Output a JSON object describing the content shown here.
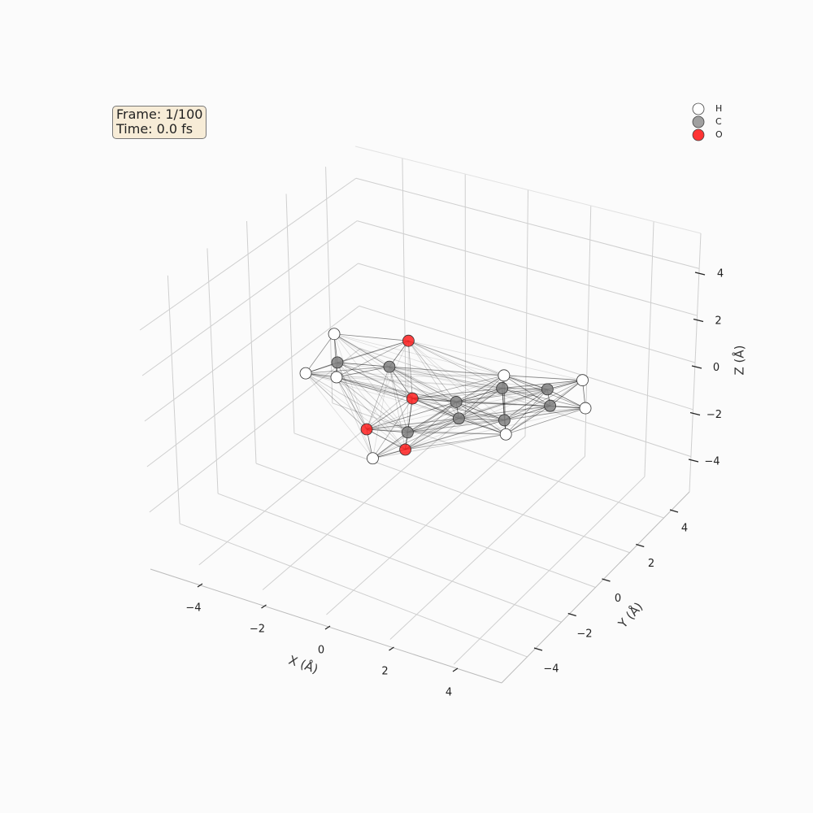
{
  "info_box": {
    "frame": "Frame: 1/100",
    "time": "Time: 0.0 fs"
  },
  "legend": [
    {
      "label": "H",
      "color": "#ffffff"
    },
    {
      "label": "C",
      "color": "#a0a0a0"
    },
    {
      "label": "O",
      "color": "#ff3333"
    }
  ],
  "chart_data": {
    "type": "scatter3d",
    "title": "",
    "xlabel": "X (Å)",
    "ylabel": "Y (Å)",
    "zlabel": "Z (Å)",
    "xlim": [
      -5.5,
      5.5
    ],
    "ylim": [
      -5.5,
      5.5
    ],
    "zlim": [
      -5.5,
      5.5
    ],
    "xticks": [
      "−4",
      "−2",
      "0",
      "2",
      "4"
    ],
    "yticks": [
      "−4",
      "−2",
      "0",
      "2",
      "4"
    ],
    "zticks": [
      "−4",
      "−2",
      "0",
      "2",
      "4"
    ],
    "tick_values": [
      -4,
      -2,
      0,
      2,
      4
    ],
    "grid": true,
    "legend_position": "top-right",
    "element_colors": {
      "H": "#ffffff",
      "C": "#808080",
      "O": "#ff2020"
    },
    "atoms": [
      {
        "el": "H",
        "x": -3.9,
        "y": 1.7,
        "z": 0
      },
      {
        "el": "O",
        "x": -2.0,
        "y": 2.5,
        "z": 0
      },
      {
        "el": "C",
        "x": -3.0,
        "y": 0.4,
        "z": 0
      },
      {
        "el": "C",
        "x": -1.7,
        "y": 1.0,
        "z": 0
      },
      {
        "el": "H",
        "x": -3.4,
        "y": -0.6,
        "z": 0
      },
      {
        "el": "H",
        "x": -2.6,
        "y": -0.3,
        "z": 0
      },
      {
        "el": "O",
        "x": -0.3,
        "y": -0.1,
        "z": 0
      },
      {
        "el": "C",
        "x": 0.8,
        "y": 0.4,
        "z": 0
      },
      {
        "el": "C",
        "x": 1.5,
        "y": 1.7,
        "z": 0
      },
      {
        "el": "H",
        "x": 1.2,
        "y": 2.3,
        "z": 0
      },
      {
        "el": "C",
        "x": 2.6,
        "y": 2.3,
        "z": 0
      },
      {
        "el": "H",
        "x": 3.2,
        "y": 3.2,
        "z": 0
      },
      {
        "el": "C",
        "x": 3.1,
        "y": 1.6,
        "z": 0
      },
      {
        "el": "H",
        "x": 4.0,
        "y": 2.0,
        "z": 0
      },
      {
        "el": "C",
        "x": 1.3,
        "y": -0.3,
        "z": 0
      },
      {
        "el": "C",
        "x": 2.4,
        "y": 0.3,
        "z": 0
      },
      {
        "el": "H",
        "x": 2.8,
        "y": -0.3,
        "z": 0
      },
      {
        "el": "O",
        "x": -0.5,
        "y": -2.2,
        "z": 0
      },
      {
        "el": "C",
        "x": 0.5,
        "y": -1.7,
        "z": 0
      },
      {
        "el": "O",
        "x": 0.9,
        "y": -2.5,
        "z": 0
      },
      {
        "el": "H",
        "x": 0.4,
        "y": -3.4,
        "z": 0
      }
    ]
  }
}
